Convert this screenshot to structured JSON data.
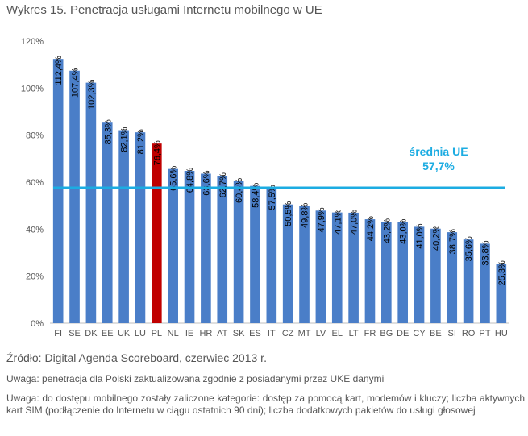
{
  "header": {
    "title": "Wykres 15. Penetracja usługami Internetu mobilnego w UE"
  },
  "chart_data": {
    "type": "bar",
    "title": "Wykres 15. Penetracja usługami Internetu mobilnego w UE",
    "xlabel": "",
    "ylabel": "",
    "ylim": [
      0,
      120
    ],
    "yticks": [
      "0%",
      "20%",
      "40%",
      "60%",
      "80%",
      "100%",
      "120%"
    ],
    "categories": [
      "FI",
      "SE",
      "DK",
      "EE",
      "UK",
      "LU",
      "PL",
      "NL",
      "IE",
      "HR",
      "AT",
      "SK",
      "ES",
      "IT",
      "CZ",
      "MT",
      "LV",
      "EL",
      "LT",
      "FR",
      "BG",
      "DE",
      "CY",
      "BE",
      "SI",
      "RO",
      "PT",
      "HU"
    ],
    "values": [
      112.4,
      107.4,
      102.3,
      85.3,
      82.1,
      81.2,
      76.4,
      65.6,
      64.8,
      63.6,
      62.7,
      60.4,
      58.4,
      57.5,
      50.5,
      49.8,
      47.9,
      47.1,
      47.0,
      44.2,
      43.2,
      43.0,
      41.0,
      40.2,
      38.7,
      35.6,
      33.8,
      25.3
    ],
    "value_labels": [
      "112,4%",
      "107,4%",
      "102,3%",
      "85,3%",
      "82,1%",
      "81,2%",
      "76,4%",
      "65,6%",
      "64,8%",
      "63,6%",
      "62,7%",
      "60,4%",
      "58,4%",
      "57,5%",
      "50,5%",
      "49,8%",
      "47,9%",
      "47,1%",
      "47,0%",
      "44,2%",
      "43,2%",
      "43,0%",
      "41,0%",
      "40,2%",
      "38,7%",
      "35,6%",
      "33,8%",
      "25,3%"
    ],
    "highlight": "PL",
    "colors": {
      "bar": "#4a7ec8",
      "highlight": "#c00000",
      "average": "#1cace2"
    },
    "average": {
      "value": 57.7,
      "label": "średnia UE",
      "value_label": "57,7%"
    }
  },
  "footer": {
    "source": "Źródło: Digital Agenda Scoreboard, czerwiec 2013 r.",
    "note1": "Uwaga: penetracja dla Polski zaktualizowana zgodnie z posiadanymi przez UKE danymi",
    "note2": "Uwaga: do dostępu mobilnego zostały zaliczone kategorie: dostęp za pomocą kart, modemów i kluczy; liczba aktywnych kart SIM (podłączenie do Internetu w ciągu ostatnich 90 dni); liczba dodatkowych pakietów do usługi głosowej"
  }
}
